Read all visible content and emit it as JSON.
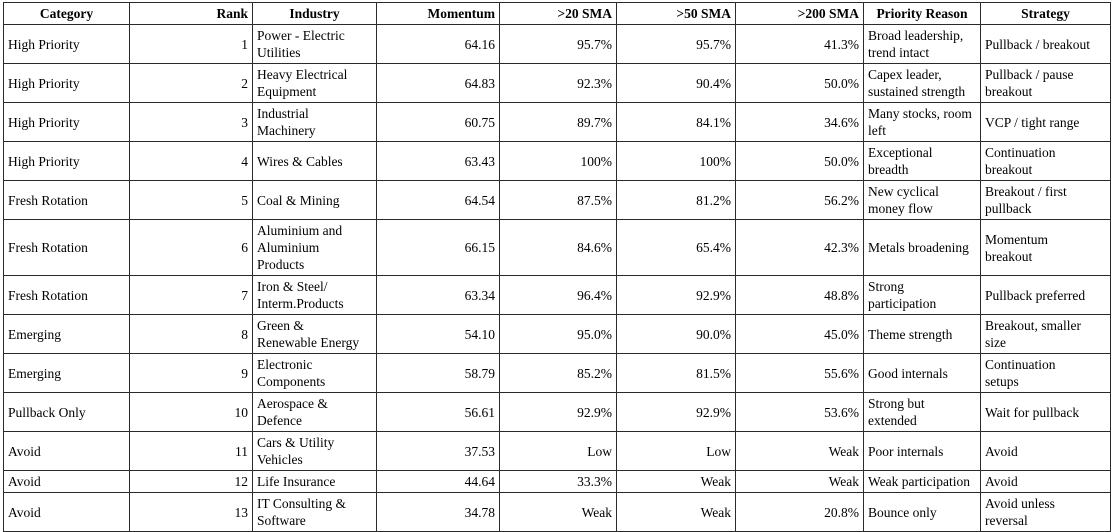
{
  "chart_data": {
    "type": "table",
    "title": "",
    "columns": [
      {
        "key": "category",
        "label": "Category",
        "align": "left",
        "header_align": "center"
      },
      {
        "key": "rank",
        "label": "Rank",
        "align": "right",
        "header_align": "right"
      },
      {
        "key": "industry",
        "label": "Industry",
        "align": "left",
        "header_align": "center"
      },
      {
        "key": "momentum",
        "label": "Momentum",
        "align": "right",
        "header_align": "right"
      },
      {
        "key": "sma20",
        "label": ">20 SMA",
        "align": "right",
        "header_align": "right"
      },
      {
        "key": "sma50",
        "label": ">50 SMA",
        "align": "right",
        "header_align": "right"
      },
      {
        "key": "sma200",
        "label": ">200 SMA",
        "align": "right",
        "header_align": "right"
      },
      {
        "key": "priority_reason",
        "label": "Priority Reason",
        "align": "left",
        "header_align": "center"
      },
      {
        "key": "strategy",
        "label": "Strategy",
        "align": "left",
        "header_align": "center"
      }
    ],
    "rows": [
      [
        "High Priority",
        "1",
        "Power - Electric\nUtilities",
        "64.16",
        "95.7%",
        "95.7%",
        "41.3%",
        "Broad leadership,\ntrend intact",
        "Pullback / breakout"
      ],
      [
        "High Priority",
        "2",
        "Heavy Electrical\nEquipment",
        "64.83",
        "92.3%",
        "90.4%",
        "50.0%",
        "Capex leader,\nsustained strength",
        "Pullback / pause\nbreakout"
      ],
      [
        "High Priority",
        "3",
        "Industrial\nMachinery",
        "60.75",
        "89.7%",
        "84.1%",
        "34.6%",
        "Many stocks, room\nleft",
        "VCP / tight range"
      ],
      [
        "High Priority",
        "4",
        "Wires & Cables",
        "63.43",
        "100%",
        "100%",
        "50.0%",
        "Exceptional\nbreadth",
        "Continuation\nbreakout"
      ],
      [
        "Fresh Rotation",
        "5",
        "Coal & Mining",
        "64.54",
        "87.5%",
        "81.2%",
        "56.2%",
        "New cyclical\nmoney flow",
        "Breakout / first\npullback"
      ],
      [
        "Fresh Rotation",
        "6",
        "Aluminium and\nAluminium\nProducts",
        "66.15",
        "84.6%",
        "65.4%",
        "42.3%",
        "Metals broadening",
        "Momentum\nbreakout"
      ],
      [
        "Fresh Rotation",
        "7",
        "Iron & Steel/\nInterm.Products",
        "63.34",
        "96.4%",
        "92.9%",
        "48.8%",
        "Strong\nparticipation",
        "Pullback preferred"
      ],
      [
        "Emerging",
        "8",
        "Green &\nRenewable Energy",
        "54.10",
        "95.0%",
        "90.0%",
        "45.0%",
        "Theme strength",
        "Breakout, smaller\nsize"
      ],
      [
        "Emerging",
        "9",
        "Electronic\nComponents",
        "58.79",
        "85.2%",
        "81.5%",
        "55.6%",
        "Good internals",
        "Continuation\nsetups"
      ],
      [
        "Pullback Only",
        "10",
        "Aerospace &\nDefence",
        "56.61",
        "92.9%",
        "92.9%",
        "53.6%",
        "Strong but\nextended",
        "Wait for pullback"
      ],
      [
        "Avoid",
        "11",
        "Cars & Utility\nVehicles",
        "37.53",
        "Low",
        "Low",
        "Weak",
        "Poor internals",
        "Avoid"
      ],
      [
        "Avoid",
        "12",
        "Life Insurance",
        "44.64",
        "33.3%",
        "Weak",
        "Weak",
        "Weak participation",
        "Avoid"
      ],
      [
        "Avoid",
        "13",
        "IT Consulting &\nSoftware",
        "34.78",
        "Weak",
        "Weak",
        "20.8%",
        "Bounce only",
        "Avoid unless\nreversal"
      ]
    ]
  }
}
